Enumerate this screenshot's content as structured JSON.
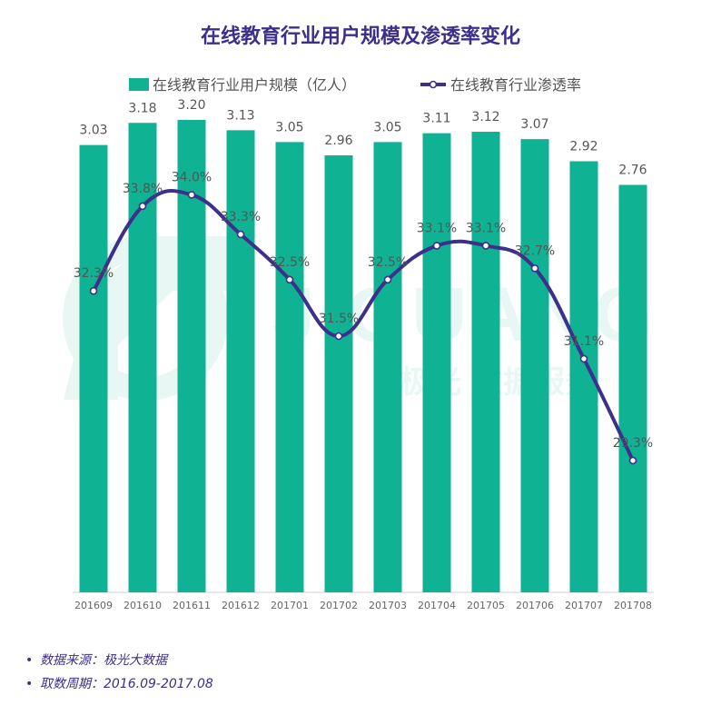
{
  "chart_data": {
    "type": "bar",
    "title": "在线教育行业用户规模及渗透率变化",
    "categories": [
      "201609",
      "201610",
      "201611",
      "201612",
      "201701",
      "201702",
      "201703",
      "201704",
      "201705",
      "201706",
      "201707",
      "201708"
    ],
    "series": [
      {
        "name": "在线教育行业用户规模（亿人）",
        "type": "bar",
        "color": "#0fb293",
        "values": [
          3.03,
          3.18,
          3.2,
          3.13,
          3.05,
          2.96,
          3.05,
          3.11,
          3.12,
          3.07,
          2.92,
          2.76
        ],
        "labels": [
          "3.03",
          "3.18",
          "3.20",
          "3.13",
          "3.05",
          "2.96",
          "3.05",
          "3.11",
          "3.12",
          "3.07",
          "2.92",
          "2.76"
        ]
      },
      {
        "name": "在线教育行业渗透率",
        "type": "line",
        "color": "#3d2f8a",
        "values": [
          32.3,
          33.8,
          34.0,
          33.3,
          32.5,
          31.5,
          32.5,
          33.1,
          33.1,
          32.7,
          31.1,
          29.3
        ],
        "labels": [
          "32.3%",
          "33.8%",
          "34.0%",
          "33.3%",
          "32.5%",
          "31.5%",
          "32.5%",
          "33.1%",
          "33.1%",
          "32.7%",
          "31.1%",
          "29.3%"
        ]
      }
    ],
    "bar_ylim": [
      0,
      3.6
    ],
    "line_ylim": [
      27,
      36
    ],
    "legend": "top-center",
    "grid": false
  },
  "watermark": {
    "brand": "JIGUANG",
    "tagline": "极光 数据服务"
  },
  "footnotes": [
    "数据来源：极光大数据",
    "取数周期：2016.09-2017.08"
  ],
  "colors": {
    "title": "#3d2f8a",
    "bar": "#0fb293",
    "line": "#3d2f8a",
    "axis_text": "#666666",
    "label_text": "#555555"
  }
}
